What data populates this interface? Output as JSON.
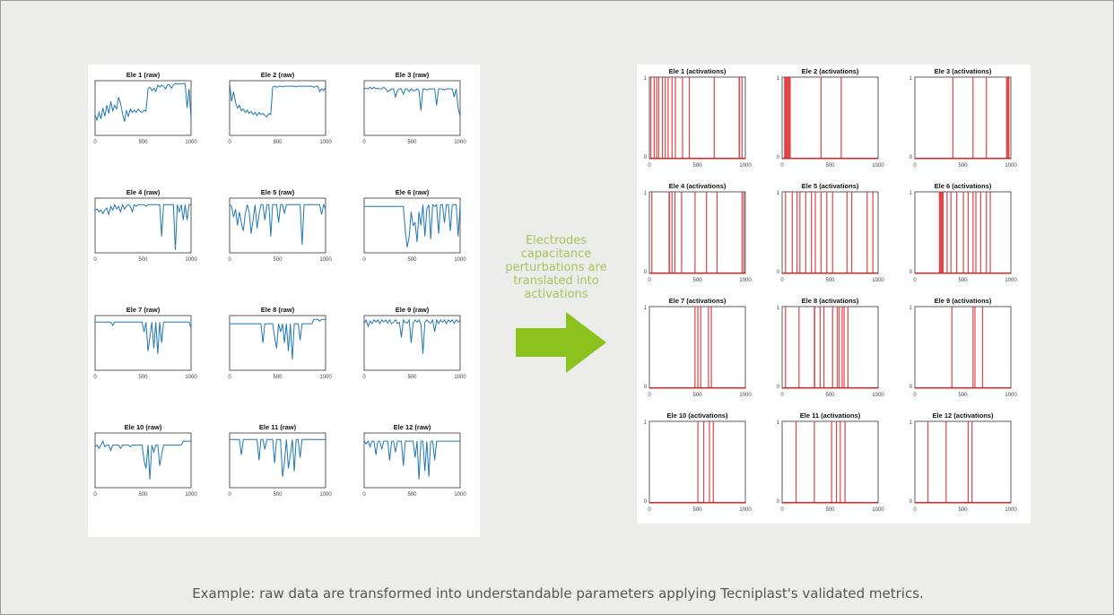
{
  "caption": "Electrodes capacitance perturbations are translated into activations",
  "footer": "Example: raw data are transformed into understandable parameters applying Tecniplast's validated metrics.",
  "colors": {
    "raw": "#1f77b4",
    "activation": "#d62728",
    "arrow": "#8cc21e",
    "caption": "#a9c25a"
  },
  "icons": {
    "arrow": "arrow-right-icon"
  },
  "chart_data": [
    {
      "type": "line",
      "panel": "raw",
      "xlim": [
        0,
        1000
      ],
      "xticks": [
        "0",
        "500",
        "1000"
      ],
      "charts": [
        {
          "title": "Ele 1 (raw)",
          "y": [
            0.38,
            0.28,
            0.42,
            0.3,
            0.5,
            0.35,
            0.55,
            0.4,
            0.62,
            0.45,
            0.55,
            0.48,
            0.7,
            0.58,
            0.4,
            0.25,
            0.45,
            0.35,
            0.48,
            0.42,
            0.46,
            0.42,
            0.48,
            0.44,
            0.42,
            0.46,
            0.44,
            0.85,
            0.88,
            0.82,
            0.86,
            0.8,
            0.92,
            0.88,
            0.92,
            0.9,
            0.85,
            0.93,
            0.92,
            0.86,
            0.92,
            0.95,
            0.94,
            0.95,
            0.94,
            0.95,
            0.95,
            0.5,
            0.85,
            0.3
          ]
        },
        {
          "title": "Ele 2 (raw)",
          "y": [
            0.95,
            0.62,
            0.8,
            0.6,
            0.5,
            0.55,
            0.45,
            0.48,
            0.42,
            0.46,
            0.4,
            0.44,
            0.38,
            0.42,
            0.36,
            0.42,
            0.38,
            0.4,
            0.36,
            0.34,
            0.4,
            0.38,
            0.88,
            0.9,
            0.88,
            0.9,
            0.9,
            0.89,
            0.9,
            0.9,
            0.9,
            0.9,
            0.9,
            0.9,
            0.89,
            0.9,
            0.9,
            0.9,
            0.9,
            0.9,
            0.9,
            0.9,
            0.9,
            0.88,
            0.9,
            0.9,
            0.8,
            0.85,
            0.82,
            0.88
          ]
        },
        {
          "title": "Ele 3 (raw)",
          "y": [
            0.85,
            0.86,
            0.85,
            0.88,
            0.85,
            0.88,
            0.85,
            0.86,
            0.85,
            0.85,
            0.88,
            0.85,
            0.8,
            0.82,
            0.85,
            0.85,
            0.7,
            0.82,
            0.85,
            0.85,
            0.75,
            0.85,
            0.85,
            0.8,
            0.85,
            0.82,
            0.82,
            0.85,
            0.82,
            0.45,
            0.85,
            0.85,
            0.83,
            0.85,
            0.85,
            0.85,
            0.85,
            0.55,
            0.85,
            0.85,
            0.85,
            0.83,
            0.85,
            0.85,
            0.85,
            0.85,
            0.7,
            0.85,
            0.5,
            0.35
          ]
        },
        {
          "title": "Ele 4 (raw)",
          "y": [
            0.78,
            0.8,
            0.75,
            0.78,
            0.72,
            0.78,
            0.82,
            0.7,
            0.85,
            0.78,
            0.88,
            0.8,
            0.85,
            0.75,
            0.88,
            0.8,
            0.85,
            0.88,
            0.85,
            0.75,
            0.88,
            0.85,
            0.88,
            0.88,
            0.88,
            0.88,
            0.85,
            0.88,
            0.88,
            0.88,
            0.88,
            0.88,
            0.88,
            0.88,
            0.3,
            0.88,
            0.88,
            0.88,
            0.88,
            0.88,
            0.88,
            0.05,
            0.88,
            0.75,
            0.88,
            0.6,
            0.88,
            0.6,
            0.88,
            0.88
          ]
        },
        {
          "title": "Ele 5 (raw)",
          "y": [
            0.88,
            0.85,
            0.65,
            0.8,
            0.5,
            0.75,
            0.55,
            0.4,
            0.72,
            0.88,
            0.75,
            0.35,
            0.6,
            0.88,
            0.45,
            0.7,
            0.88,
            0.88,
            0.6,
            0.88,
            0.88,
            0.3,
            0.88,
            0.88,
            0.88,
            0.55,
            0.88,
            0.88,
            0.72,
            0.88,
            0.88,
            0.88,
            0.88,
            0.88,
            0.88,
            0.88,
            0.88,
            0.15,
            0.88,
            0.88,
            0.88,
            0.88,
            0.88,
            0.88,
            0.88,
            0.88,
            0.88,
            0.7,
            0.88,
            0.8
          ]
        },
        {
          "title": "Ele 6 (raw)",
          "y": [
            0.85,
            0.85,
            0.85,
            0.85,
            0.85,
            0.85,
            0.85,
            0.85,
            0.85,
            0.85,
            0.85,
            0.85,
            0.85,
            0.85,
            0.85,
            0.85,
            0.85,
            0.85,
            0.85,
            0.85,
            0.85,
            0.4,
            0.1,
            0.3,
            0.75,
            0.5,
            0.55,
            0.2,
            0.75,
            0.5,
            0.88,
            0.3,
            0.8,
            0.88,
            0.25,
            0.88,
            0.85,
            0.88,
            0.35,
            0.88,
            0.88,
            0.55,
            0.88,
            0.88,
            0.4,
            0.88,
            0.88,
            0.88,
            0.3,
            0.88
          ]
        },
        {
          "title": "Ele 7 (raw)",
          "y": [
            0.88,
            0.88,
            0.88,
            0.88,
            0.88,
            0.88,
            0.88,
            0.88,
            0.88,
            0.82,
            0.88,
            0.88,
            0.88,
            0.88,
            0.88,
            0.88,
            0.88,
            0.88,
            0.88,
            0.88,
            0.88,
            0.88,
            0.88,
            0.88,
            0.88,
            0.7,
            0.88,
            0.35,
            0.6,
            0.88,
            0.4,
            0.88,
            0.3,
            0.88,
            0.5,
            0.88,
            0.88,
            0.88,
            0.88,
            0.88,
            0.88,
            0.88,
            0.88,
            0.88,
            0.88,
            0.88,
            0.88,
            0.88,
            0.88,
            0.78
          ]
        },
        {
          "title": "Ele 8 (raw)",
          "y": [
            0.85,
            0.85,
            0.85,
            0.85,
            0.85,
            0.85,
            0.85,
            0.85,
            0.85,
            0.85,
            0.85,
            0.85,
            0.85,
            0.85,
            0.85,
            0.85,
            0.85,
            0.5,
            0.85,
            0.85,
            0.85,
            0.85,
            0.85,
            0.6,
            0.4,
            0.85,
            0.7,
            0.85,
            0.5,
            0.85,
            0.35,
            0.85,
            0.2,
            0.85,
            0.85,
            0.85,
            0.55,
            0.85,
            0.85,
            0.85,
            0.85,
            0.85,
            0.85,
            0.93,
            0.93,
            0.93,
            0.9,
            0.93,
            0.93,
            0.93
          ]
        },
        {
          "title": "Ele 9 (raw)",
          "y": [
            0.85,
            0.92,
            0.8,
            0.9,
            0.85,
            0.92,
            0.88,
            0.92,
            0.85,
            0.92,
            0.88,
            0.92,
            0.86,
            0.92,
            0.85,
            0.88,
            0.92,
            0.85,
            0.88,
            0.6,
            0.92,
            0.88,
            0.86,
            0.92,
            0.5,
            0.86,
            0.92,
            0.88,
            0.92,
            0.85,
            0.3,
            0.88,
            0.92,
            0.88,
            0.86,
            0.92,
            0.7,
            0.92,
            0.85,
            0.92,
            0.88,
            0.92,
            0.85,
            0.92,
            0.88,
            0.92,
            0.86,
            0.92,
            0.88,
            0.92
          ]
        },
        {
          "title": "Ele 10 (raw)",
          "y": [
            0.75,
            0.78,
            0.72,
            0.78,
            0.85,
            0.75,
            0.78,
            0.78,
            0.68,
            0.78,
            0.78,
            0.78,
            0.78,
            0.72,
            0.78,
            0.78,
            0.78,
            0.78,
            0.75,
            0.78,
            0.78,
            0.78,
            0.78,
            0.78,
            0.78,
            0.5,
            0.35,
            0.78,
            0.15,
            0.78,
            0.65,
            0.78,
            0.78,
            0.4,
            0.6,
            0.78,
            0.78,
            0.78,
            0.78,
            0.78,
            0.78,
            0.78,
            0.78,
            0.78,
            0.78,
            0.85,
            0.85,
            0.85,
            0.85,
            0.85
          ]
        },
        {
          "title": "Ele 11 (raw)",
          "y": [
            0.88,
            0.88,
            0.88,
            0.88,
            0.88,
            0.88,
            0.6,
            0.88,
            0.88,
            0.88,
            0.88,
            0.88,
            0.88,
            0.88,
            0.88,
            0.5,
            0.88,
            0.88,
            0.7,
            0.88,
            0.88,
            0.88,
            0.88,
            0.45,
            0.88,
            0.88,
            0.88,
            0.2,
            0.45,
            0.88,
            0.35,
            0.6,
            0.88,
            0.3,
            0.88,
            0.88,
            0.55,
            0.88,
            0.88,
            0.88,
            0.88,
            0.88,
            0.88,
            0.88,
            0.88,
            0.88,
            0.88,
            0.88,
            0.88,
            0.88
          ]
        },
        {
          "title": "Ele 12 (raw)",
          "y": [
            0.85,
            0.8,
            0.85,
            0.75,
            0.85,
            0.85,
            0.6,
            0.85,
            0.85,
            0.7,
            0.85,
            0.85,
            0.85,
            0.5,
            0.85,
            0.85,
            0.65,
            0.85,
            0.85,
            0.85,
            0.4,
            0.85,
            0.85,
            0.85,
            0.85,
            0.85,
            0.55,
            0.85,
            0.15,
            0.85,
            0.85,
            0.3,
            0.85,
            0.2,
            0.85,
            0.85,
            0.5,
            0.85,
            0.85,
            0.85,
            0.85,
            0.85,
            0.85,
            0.85,
            0.85,
            0.85,
            0.85,
            0.85,
            0.85,
            0.85
          ]
        }
      ]
    },
    {
      "type": "bar",
      "panel": "activations",
      "xlim": [
        0,
        1000
      ],
      "ylim": [
        0,
        1
      ],
      "xticks": [
        "0",
        "500",
        "1000"
      ],
      "yticks": [
        "0",
        "1"
      ],
      "charts": [
        {
          "title": "Ele 1 (activations)",
          "activations": [
            [
              10,
              20
            ],
            [
              45,
              55
            ],
            [
              70,
              80
            ],
            [
              90,
              100
            ],
            [
              130,
              140
            ],
            [
              160,
              170
            ],
            [
              190,
              200
            ],
            [
              230,
              240
            ],
            [
              265,
              275
            ],
            [
              340,
              350
            ],
            [
              410,
              420
            ],
            [
              670,
              680
            ],
            [
              930,
              945
            ],
            [
              960,
              970
            ]
          ]
        },
        {
          "title": "Ele 2 (activations)",
          "activations": [
            [
              20,
              90
            ],
            [
              400,
              410
            ],
            [
              610,
              620
            ]
          ]
        },
        {
          "title": "Ele 3 (activations)",
          "activations": [
            [
              390,
              400
            ],
            [
              600,
              610
            ],
            [
              740,
              750
            ],
            [
              950,
              985
            ]
          ]
        },
        {
          "title": "Ele 4 (activations)",
          "activations": [
            [
              20,
              30
            ],
            [
              200,
              215
            ],
            [
              230,
              240
            ],
            [
              260,
              270
            ],
            [
              330,
              340
            ],
            [
              470,
              480
            ],
            [
              590,
              600
            ],
            [
              700,
              710
            ],
            [
              960,
              970
            ],
            [
              980,
              990
            ]
          ]
        },
        {
          "title": "Ele 5 (activations)",
          "activations": [
            [
              30,
              40
            ],
            [
              100,
              110
            ],
            [
              150,
              160
            ],
            [
              180,
              190
            ],
            [
              240,
              250
            ],
            [
              300,
              310
            ],
            [
              340,
              350
            ],
            [
              400,
              410
            ],
            [
              460,
              470
            ],
            [
              520,
              530
            ],
            [
              670,
              680
            ],
            [
              720,
              730
            ],
            [
              880,
              890
            ],
            [
              940,
              950
            ]
          ]
        },
        {
          "title": "Ele 6 (activations)",
          "activations": [
            [
              250,
              300
            ],
            [
              330,
              340
            ],
            [
              370,
              380
            ],
            [
              430,
              440
            ],
            [
              500,
              510
            ],
            [
              550,
              560
            ],
            [
              600,
              610
            ],
            [
              630,
              640
            ],
            [
              680,
              690
            ],
            [
              740,
              750
            ],
            [
              780,
              790
            ]
          ]
        },
        {
          "title": "Ele 7 (activations)",
          "activations": [
            [
              470,
              480
            ],
            [
              500,
              510
            ],
            [
              530,
              540
            ],
            [
              610,
              620
            ],
            [
              640,
              650
            ]
          ]
        },
        {
          "title": "Ele 8 (activations)",
          "activations": [
            [
              30,
              40
            ],
            [
              170,
              180
            ],
            [
              330,
              345
            ],
            [
              390,
              400
            ],
            [
              430,
              440
            ],
            [
              520,
              530
            ],
            [
              570,
              580
            ],
            [
              590,
              600
            ],
            [
              620,
              630
            ],
            [
              640,
              650
            ],
            [
              680,
              690
            ]
          ]
        },
        {
          "title": "Ele 9 (activations)",
          "activations": [
            [
              380,
              390
            ],
            [
              600,
              610
            ],
            [
              620,
              630
            ],
            [
              700,
              710
            ]
          ]
        },
        {
          "title": "Ele 10 (activations)",
          "activations": [
            [
              500,
              510
            ],
            [
              560,
              570
            ],
            [
              620,
              630
            ],
            [
              660,
              670
            ]
          ]
        },
        {
          "title": "Ele 11 (activations)",
          "activations": [
            [
              140,
              150
            ],
            [
              330,
              340
            ],
            [
              510,
              520
            ],
            [
              560,
              570
            ],
            [
              600,
              610
            ],
            [
              650,
              660
            ]
          ]
        },
        {
          "title": "Ele 12 (activations)",
          "activations": [
            [
              130,
              140
            ],
            [
              320,
              330
            ],
            [
              550,
              560
            ],
            [
              590,
              600
            ]
          ]
        }
      ]
    }
  ]
}
